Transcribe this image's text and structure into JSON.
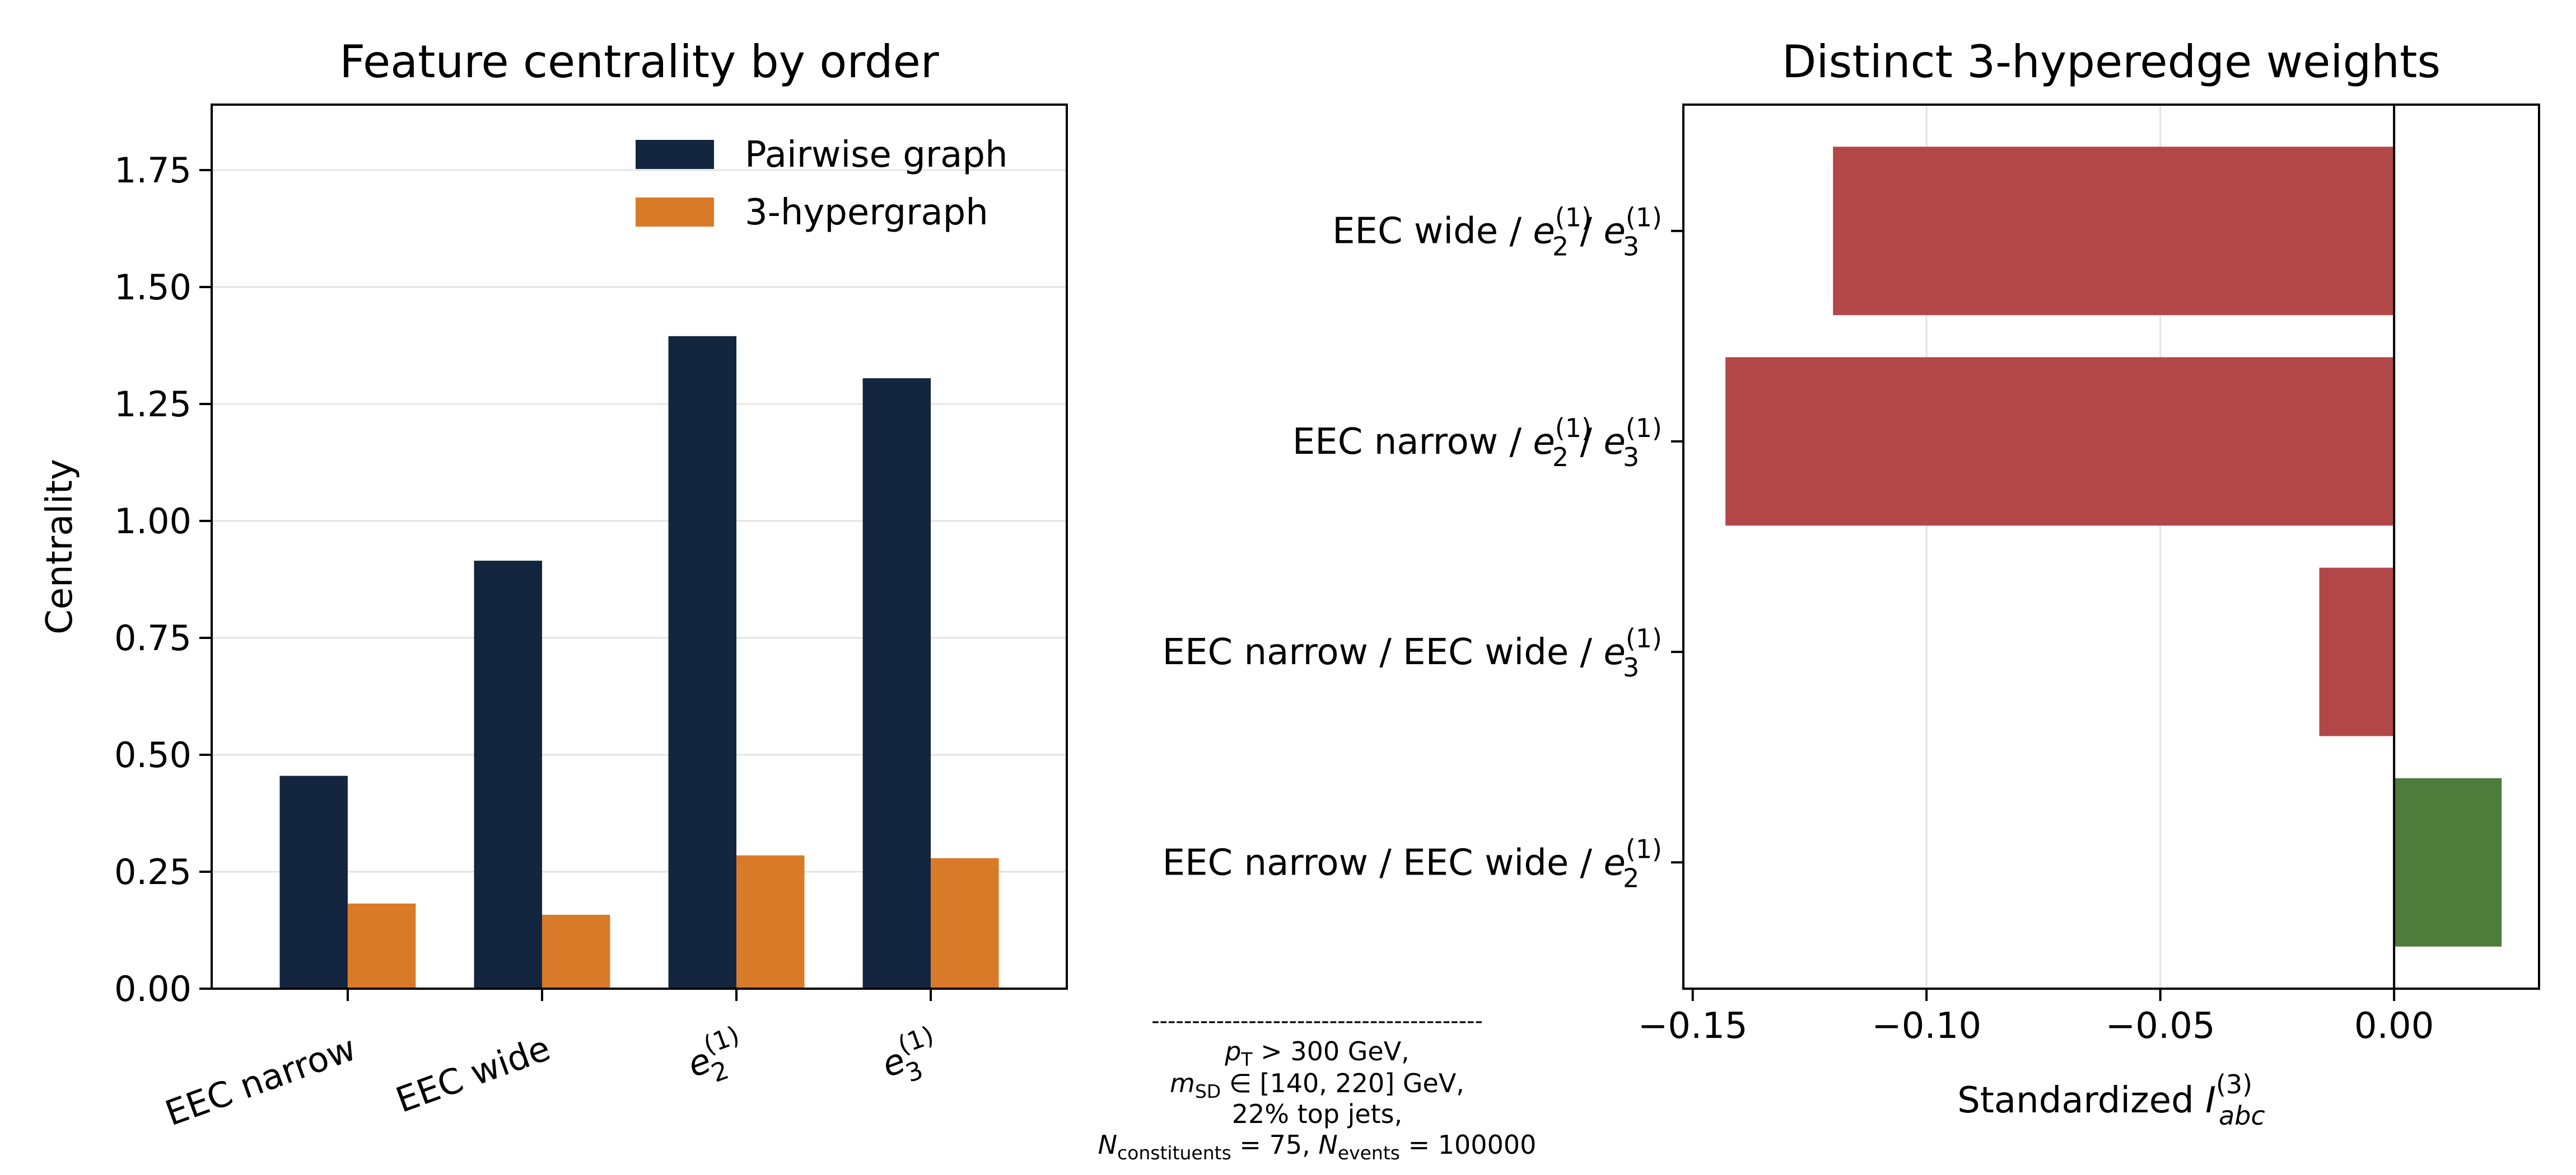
{
  "chart_data": [
    {
      "type": "bar",
      "title": "Feature centrality by order",
      "xlabel": "",
      "ylabel": "Centrality",
      "categories": [
        "EEC narrow",
        "EEC wide",
        "e_2^(1)",
        "e_3^(1)"
      ],
      "category_labels": [
        {
          "base": "EEC narrow",
          "sub": "",
          "sup": ""
        },
        {
          "base": "EEC wide",
          "sub": "",
          "sup": ""
        },
        {
          "base": "e",
          "sub": "2",
          "sup": "(1)"
        },
        {
          "base": "e",
          "sub": "3",
          "sup": "(1)"
        }
      ],
      "series": [
        {
          "name": "Pairwise graph",
          "color": "#13253f",
          "values": [
            0.455,
            0.915,
            1.395,
            1.305
          ]
        },
        {
          "name": "3-hypergraph",
          "color": "#d97a28",
          "values": [
            0.182,
            0.158,
            0.285,
            0.279
          ]
        }
      ],
      "ylim": [
        0,
        1.89
      ],
      "yticks": [
        "0.00",
        "0.25",
        "0.50",
        "0.75",
        "1.00",
        "1.25",
        "1.50",
        "1.75"
      ],
      "grid": "horizontal",
      "legend": "top-right"
    },
    {
      "type": "bar",
      "orientation": "horizontal",
      "title": "Distinct 3-hyperedge weights",
      "xlabel": {
        "base": "Standardized ",
        "italic": "I",
        "sub": "abc",
        "sup": "(3)"
      },
      "categories": [
        "EEC wide / e_2^(1) / e_3^(1)",
        "EEC narrow / e_2^(1) / e_3^(1)",
        "EEC narrow / EEC wide / e_3^(1)",
        "EEC narrow / EEC wide / e_2^(1)"
      ],
      "category_labels": [
        [
          {
            "t": "EEC wide / "
          },
          {
            "t": "e",
            "sub": "2",
            "sup": "(1)"
          },
          {
            "t": " / "
          },
          {
            "t": "e",
            "sub": "3",
            "sup": "(1)"
          }
        ],
        [
          {
            "t": "EEC narrow / "
          },
          {
            "t": "e",
            "sub": "2",
            "sup": "(1)"
          },
          {
            "t": " / "
          },
          {
            "t": "e",
            "sub": "3",
            "sup": "(1)"
          }
        ],
        [
          {
            "t": "EEC narrow / EEC wide / "
          },
          {
            "t": "e",
            "sub": "3",
            "sup": "(1)"
          }
        ],
        [
          {
            "t": "EEC narrow / EEC wide / "
          },
          {
            "t": "e",
            "sub": "2",
            "sup": "(1)"
          }
        ]
      ],
      "values": [
        -0.12,
        -0.143,
        -0.016,
        0.023
      ],
      "colors": [
        "#b34747",
        "#b34747",
        "#b34747",
        "#4e7c3b"
      ],
      "xlim": [
        -0.152,
        0.031
      ],
      "xticks": [
        "−0.15",
        "−0.10",
        "−0.05",
        "0.00"
      ],
      "xtick_values": [
        -0.15,
        -0.1,
        -0.05,
        0.0
      ],
      "grid": "vertical"
    }
  ],
  "annotation": {
    "rule": "-----------------------------------------",
    "lines": [
      [
        {
          "i": "p"
        },
        {
          "sub": "T"
        },
        {
          "t": " > 300 GeV,"
        }
      ],
      [
        {
          "i": "m"
        },
        {
          "sub": "SD"
        },
        {
          "t": " ∈ [140, 220] GeV,"
        }
      ],
      [
        {
          "t": "22% top jets,"
        }
      ],
      [
        {
          "i": "N"
        },
        {
          "sub": "constituents"
        },
        {
          "t": " = 75, "
        },
        {
          "i": "N"
        },
        {
          "sub": "events"
        },
        {
          "t": " = 100000"
        }
      ]
    ]
  }
}
